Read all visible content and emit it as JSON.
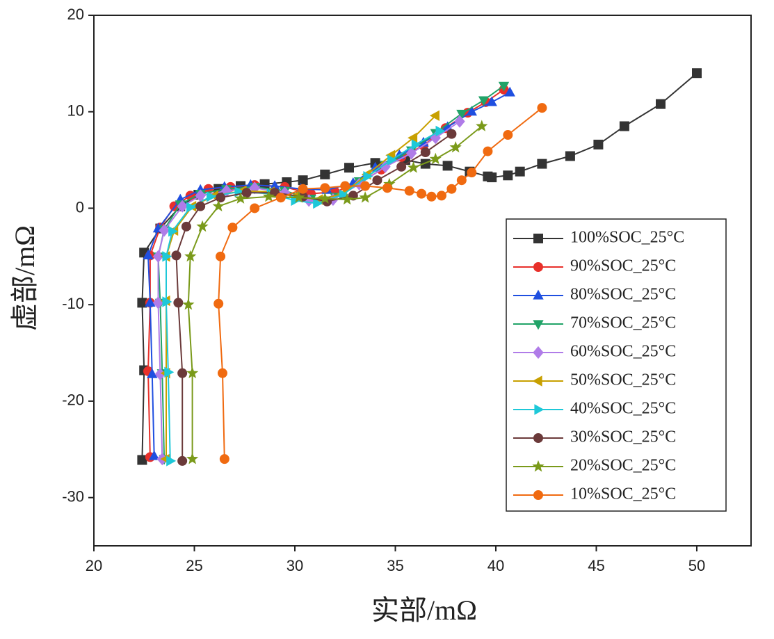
{
  "chart_data": {
    "type": "line",
    "xlabel": "实部/mΩ",
    "ylabel": "虚部/mΩ",
    "xlim": [
      20,
      52.7
    ],
    "ylim": [
      -35,
      20
    ],
    "xticks": [
      20,
      25,
      30,
      35,
      40,
      45,
      50
    ],
    "yticks": [
      -30,
      -20,
      -10,
      0,
      10,
      20
    ],
    "legend": "center right",
    "series": [
      {
        "name": "100%SOC_25°C",
        "color": "#333333",
        "marker": "square",
        "x": [
          22.4,
          22.5,
          22.4,
          22.5,
          23.3,
          24.3,
          25.2,
          26.2,
          27.3,
          28.5,
          29.6,
          30.4,
          31.5,
          32.7,
          34.0,
          35.5,
          36.5,
          37.6,
          38.7,
          39.6,
          39.8,
          40.6,
          41.2,
          42.3,
          43.7,
          45.1,
          46.4,
          48.2,
          50.0
        ],
        "values": [
          -26.1,
          -16.8,
          -9.8,
          -4.6,
          -2.1,
          0.2,
          1.4,
          2.0,
          2.3,
          2.5,
          2.7,
          2.9,
          3.5,
          4.2,
          4.7,
          5.0,
          4.6,
          4.4,
          3.8,
          3.3,
          3.2,
          3.4,
          3.8,
          4.6,
          5.4,
          6.6,
          8.5,
          10.8,
          14.0
        ]
      },
      {
        "name": "90%SOC_25°C",
        "color": "#e8302a",
        "marker": "circle",
        "x": [
          22.8,
          22.7,
          22.8,
          22.8,
          23.3,
          24.0,
          24.8,
          25.7,
          26.8,
          28.0,
          29.5,
          30.8,
          32.0,
          33.2,
          34.3,
          35.3,
          36.4,
          37.5,
          38.6,
          39.5,
          40.4
        ],
        "values": [
          -25.8,
          -16.9,
          -9.8,
          -4.9,
          -2.0,
          0.2,
          1.3,
          2.0,
          2.2,
          2.4,
          2.2,
          1.5,
          1.7,
          2.6,
          4.0,
          5.3,
          6.5,
          8.3,
          9.9,
          11.0,
          12.3
        ]
      },
      {
        "name": "80%SOC_25°C",
        "color": "#1f4fe0",
        "marker": "triangle-up",
        "x": [
          23.0,
          22.9,
          22.8,
          22.7,
          23.2,
          24.3,
          25.3,
          26.5,
          27.8,
          29.0,
          30.3,
          31.6,
          32.9,
          34.0,
          35.2,
          36.4,
          37.6,
          38.8,
          39.8,
          40.7
        ],
        "values": [
          -25.7,
          -17.2,
          -9.8,
          -4.9,
          -2.1,
          0.9,
          1.9,
          2.2,
          2.4,
          2.3,
          2.0,
          1.9,
          2.6,
          4.2,
          5.5,
          6.8,
          8.4,
          10.0,
          11.0,
          12.0
        ]
      },
      {
        "name": "70%SOC_25°C",
        "color": "#21a368",
        "marker": "triangle-down",
        "x": [
          23.5,
          23.4,
          23.3,
          23.2,
          23.5,
          24.3,
          25.3,
          26.6,
          28.0,
          29.5,
          30.8,
          32.0,
          33.2,
          34.5,
          35.8,
          37.0,
          38.3,
          39.4,
          40.4
        ],
        "values": [
          -26.0,
          -17.1,
          -9.8,
          -5.0,
          -2.2,
          0.4,
          1.5,
          2.0,
          2.2,
          1.8,
          1.0,
          1.2,
          2.8,
          4.5,
          6.0,
          7.8,
          9.8,
          11.2,
          12.7
        ]
      },
      {
        "name": "60%SOC_25°C",
        "color": "#b07ce8",
        "marker": "diamond",
        "x": [
          23.4,
          23.3,
          23.2,
          23.2,
          23.5,
          24.4,
          25.3,
          26.6,
          28.0,
          29.5,
          30.7,
          31.9,
          33.2,
          34.5,
          35.8,
          37.0,
          38.2
        ],
        "values": [
          -26.0,
          -17.2,
          -9.8,
          -5.0,
          -2.3,
          0.2,
          1.3,
          1.8,
          2.1,
          1.6,
          0.8,
          0.9,
          2.5,
          4.3,
          5.7,
          7.3,
          9.0
        ]
      },
      {
        "name": "50%SOC_25°C",
        "color": "#c8a000",
        "marker": "triangle-left",
        "x": [
          23.6,
          23.6,
          23.6,
          23.6,
          24.0,
          24.9,
          26.0,
          27.4,
          28.8,
          30.0,
          31.2,
          32.4,
          33.6,
          34.8,
          35.9,
          37.0
        ],
        "values": [
          -26.0,
          -17.1,
          -9.6,
          -5.0,
          -2.3,
          0.2,
          1.3,
          1.8,
          1.7,
          1.2,
          0.9,
          1.5,
          3.5,
          5.5,
          7.3,
          9.6
        ]
      },
      {
        "name": "40%SOC_25°C",
        "color": "#1ec8d8",
        "marker": "triangle-right",
        "x": [
          23.8,
          23.7,
          23.6,
          23.6,
          23.9,
          24.8,
          25.8,
          27.2,
          28.8,
          30.0,
          31.1,
          32.4,
          33.6,
          34.8,
          36.0,
          37.2
        ],
        "values": [
          -26.2,
          -17.0,
          -9.7,
          -5.0,
          -2.4,
          0.1,
          1.2,
          1.7,
          1.5,
          0.8,
          0.5,
          1.4,
          3.3,
          5.0,
          6.6,
          8.0
        ]
      },
      {
        "name": "30%SOC_25°C",
        "color": "#6b3a3a",
        "marker": "circle",
        "x": [
          24.4,
          24.4,
          24.2,
          24.1,
          24.6,
          25.3,
          26.3,
          27.6,
          29.0,
          30.4,
          31.6,
          32.9,
          34.1,
          35.3,
          36.5,
          37.8
        ],
        "values": [
          -26.2,
          -17.1,
          -9.8,
          -4.9,
          -1.9,
          0.2,
          1.1,
          1.6,
          1.6,
          1.2,
          0.7,
          1.3,
          2.9,
          4.3,
          5.8,
          7.7
        ]
      },
      {
        "name": "20%SOC_25°C",
        "color": "#7a9a1a",
        "marker": "star",
        "x": [
          24.9,
          24.9,
          24.7,
          24.8,
          25.4,
          26.2,
          27.3,
          28.7,
          30.2,
          31.5,
          32.6,
          33.5,
          34.7,
          35.9,
          37.0,
          38.0,
          39.3
        ],
        "values": [
          -26.0,
          -17.1,
          -10.0,
          -5.0,
          -1.9,
          0.2,
          1.0,
          1.2,
          1.1,
          1.0,
          0.9,
          1.1,
          2.5,
          4.2,
          5.1,
          6.3,
          8.5
        ]
      },
      {
        "name": "10%SOC_25°C",
        "color": "#f06a10",
        "marker": "circle",
        "x": [
          26.5,
          26.4,
          26.2,
          26.3,
          26.9,
          28.0,
          29.3,
          30.4,
          31.5,
          32.5,
          33.5,
          34.6,
          35.7,
          36.3,
          36.8,
          37.3,
          37.8,
          38.3,
          38.8,
          39.6,
          40.6,
          42.3
        ],
        "values": [
          -26.0,
          -17.1,
          -9.9,
          -5.0,
          -2.0,
          0.0,
          1.1,
          2.0,
          2.1,
          2.3,
          2.3,
          2.1,
          1.8,
          1.5,
          1.2,
          1.3,
          2.0,
          2.9,
          3.7,
          5.9,
          7.6,
          10.4
        ]
      }
    ]
  }
}
